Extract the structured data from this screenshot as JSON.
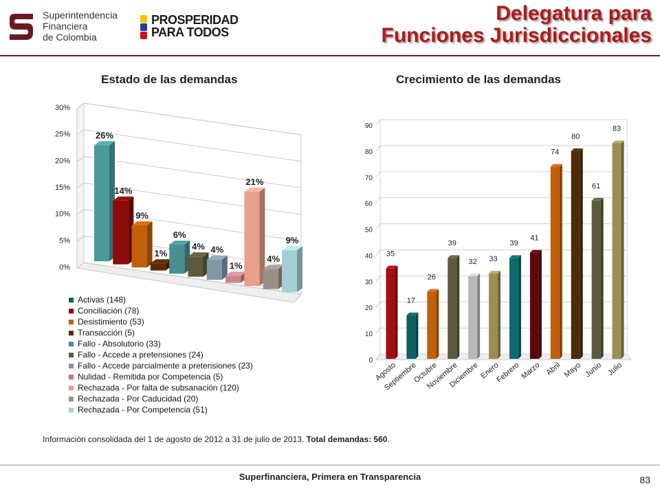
{
  "header": {
    "sf_logo_lines": [
      "Superintendencia",
      "Financiera",
      "de Colombia"
    ],
    "pp_logo_lines": [
      "PROSPERIDAD",
      "PARA TODOS"
    ],
    "title_line1": "Delegatura para",
    "title_line2": "Funciones Jurisdiccionales",
    "accent_color": "#b01a1a"
  },
  "chart_data": [
    {
      "type": "bar",
      "title": "Estado de las demandas",
      "ylim": [
        0,
        30
      ],
      "yticks": [
        "0%",
        "5%",
        "10%",
        "15%",
        "20%",
        "25%",
        "30%"
      ],
      "grid": true,
      "legend_position": "bottom",
      "categories": [
        "Activas (148)",
        "Conciliación  (78)",
        "Desistimiento (53)",
        "Transacción (5)",
        "Fallo - Absolutorio (33)",
        "Fallo - Accede a pretensiones (24)",
        "Fallo - Accede parcialmente a pretensiones (23)",
        "Nulidad - Remitida por Competencia (5)",
        "Rechazada - Por falta de subsanación (120)",
        "Rechazada - Por Caducidad (20)",
        "Rechazada - Por Competencia (51)"
      ],
      "values": [
        26,
        14,
        9,
        1,
        6,
        4,
        4,
        1,
        21,
        4,
        9
      ],
      "labels": [
        "26%",
        "14%",
        "9%",
        "1%",
        "6%",
        "4%",
        "4%",
        "1%",
        "21%",
        "4%",
        "9%"
      ],
      "colors": [
        "#4a9a9a",
        "#8b0a0a",
        "#c0600a",
        "#5a2a08",
        "#4a8e93",
        "#5c5a3a",
        "#7f98a4",
        "#c98490",
        "#e8a08c",
        "#9a8f88",
        "#a3cfd2"
      ],
      "legend_colors": [
        "#0f5f63",
        "#8b0a0a",
        "#c0600a",
        "#5a2a08",
        "#4a8e93",
        "#5c5a3a",
        "#7f98a4",
        "#b77c84",
        "#e8a08c",
        "#9a8f88",
        "#a3cfd2"
      ]
    },
    {
      "type": "bar",
      "title": "Crecimiento de las demandas",
      "ylim": [
        0,
        90
      ],
      "yticks": [
        "0",
        "10",
        "20",
        "30",
        "40",
        "50",
        "60",
        "70",
        "80",
        "90"
      ],
      "grid": true,
      "categories": [
        "Agosto",
        "Septiembre",
        "Octubre",
        "Noviembre",
        "Diciembre",
        "Enero",
        "Febrero",
        "Marzo",
        "Abril",
        "Mayo",
        "Junio",
        "Julio"
      ],
      "values": [
        35,
        17,
        26,
        39,
        32,
        33,
        39,
        41,
        74,
        80,
        61,
        83
      ],
      "labels": [
        "35",
        "17",
        "26",
        "39",
        "32",
        "33",
        "39",
        "41",
        "74",
        "80",
        "61",
        "83"
      ],
      "colors": [
        "#a01010",
        "#0f5f63",
        "#c0600a",
        "#5c5a3a",
        "#b8b8b8",
        "#9a8f55",
        "#0f6a6e",
        "#5a0808",
        "#c0600a",
        "#4e2a08",
        "#5c5a3a",
        "#9a8f55"
      ]
    }
  ],
  "footnote": {
    "text": "Información consolidada del  1 de agosto de 2012 a  31 de julio de 2013. ",
    "bold": "Total demandas: 560",
    "end": "."
  },
  "footer": {
    "text": "Superfinanciera, Primera en Transparencia",
    "page_number": "83"
  }
}
